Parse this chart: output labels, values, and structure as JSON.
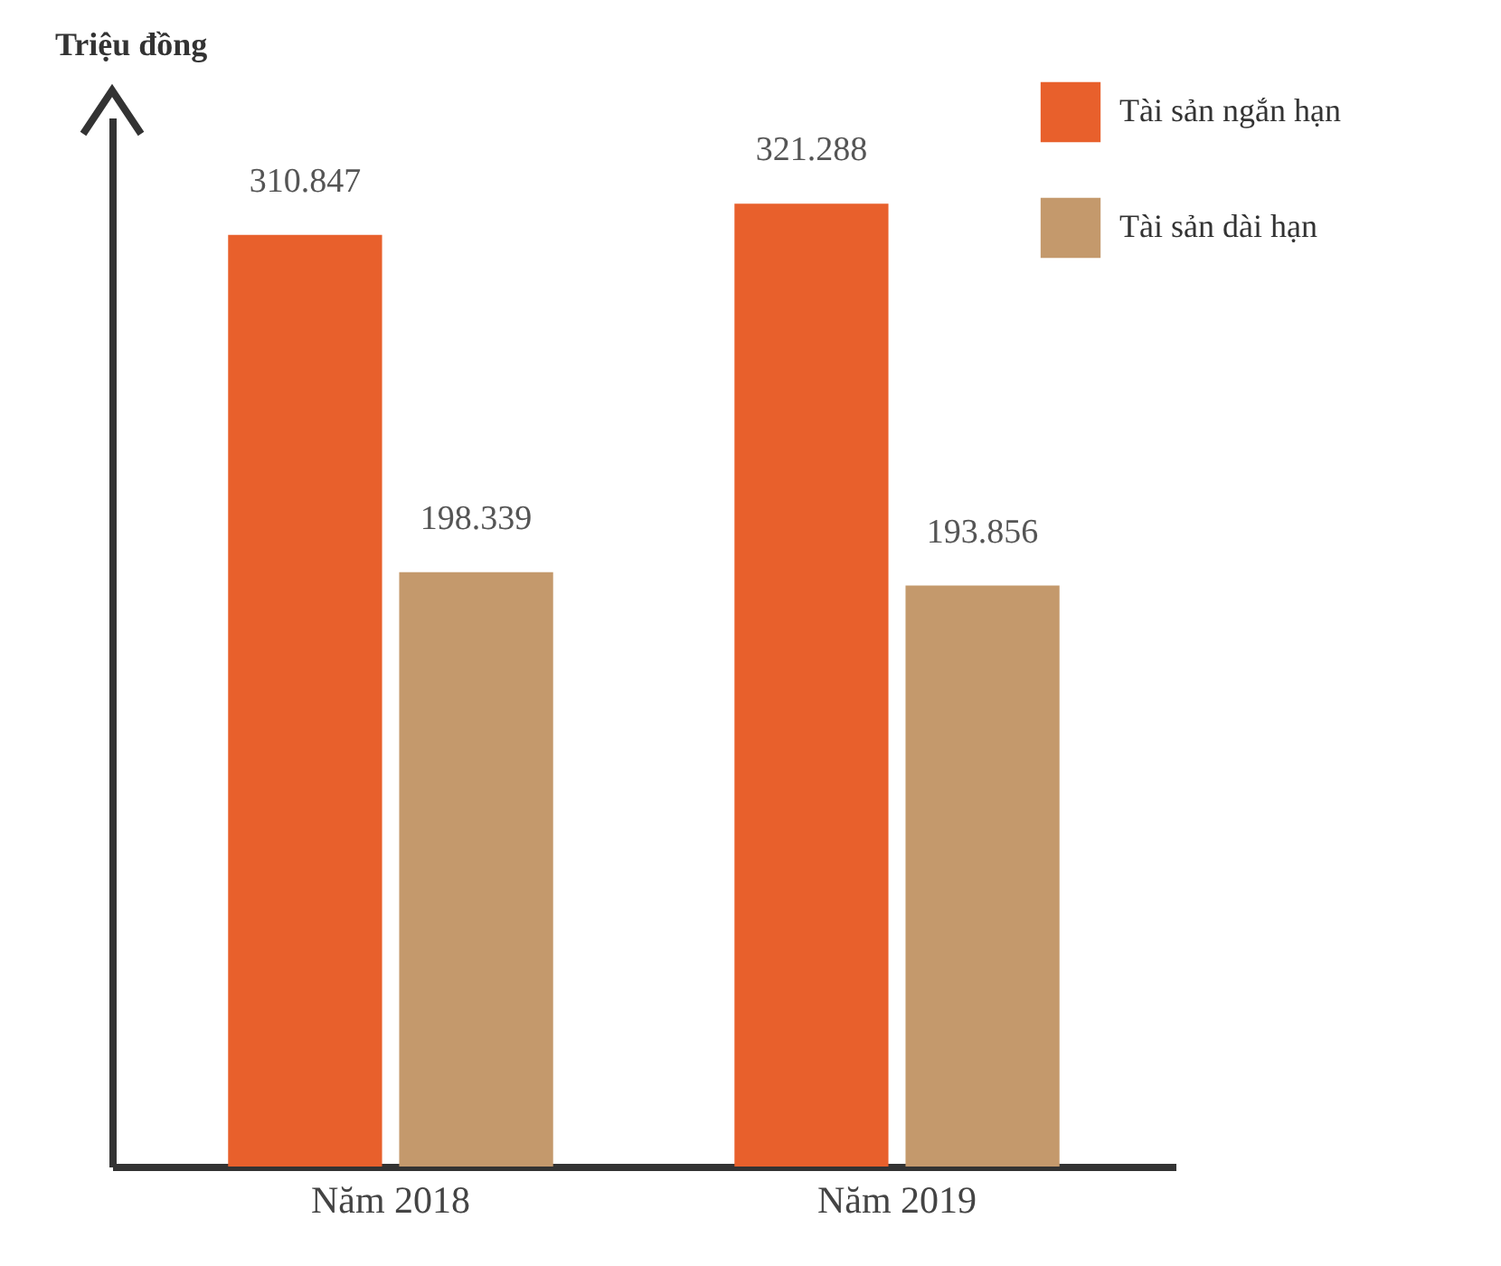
{
  "chart_data": {
    "type": "bar",
    "ylabel": "Triệu đồng",
    "categories": [
      "Năm 2018",
      "Năm 2019"
    ],
    "series": [
      {
        "name": "Tài sản ngắn hạn",
        "color": "#e8602c",
        "values": [
          310.847,
          321.288
        ]
      },
      {
        "name": "Tài sản dài hạn",
        "color": "#c4996c",
        "values": [
          198.339,
          193.856
        ]
      }
    ],
    "data_labels": true,
    "legend": "top right"
  }
}
